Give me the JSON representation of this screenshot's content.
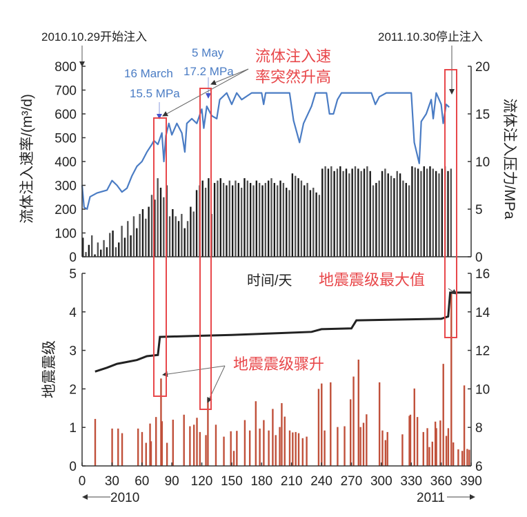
{
  "chart_data": [
    {
      "panel": "top",
      "type": "bar+line",
      "xlabel": "时间/天",
      "xlim": [
        0,
        390
      ],
      "xticks": [
        0,
        30,
        60,
        90,
        120,
        150,
        180,
        210,
        240,
        270,
        300,
        330,
        360,
        390
      ],
      "ylabel_left": "流体注入速率/(m³/d)",
      "ylim_left": [
        0,
        800
      ],
      "yticks_left": [
        0,
        100,
        200,
        300,
        400,
        500,
        600,
        700,
        800
      ],
      "ylabel_right": "流体注入压力/MPa",
      "ylim_right": [
        0,
        20
      ],
      "yticks_right": [
        0,
        5,
        10,
        15,
        20
      ],
      "injection_rate": {
        "name": "流体注入速率",
        "color": "#1a1a1a",
        "x_step_days": 3,
        "values": [
          80,
          20,
          50,
          90,
          10,
          60,
          30,
          70,
          40,
          100,
          110,
          40,
          60,
          130,
          80,
          150,
          90,
          170,
          120,
          180,
          200,
          160,
          210,
          260,
          240,
          330,
          290,
          250,
          300,
          170,
          200,
          170,
          150,
          180,
          120,
          150,
          210,
          190,
          280,
          300,
          320,
          290,
          330,
          180,
          310,
          320,
          330,
          310,
          300,
          320,
          300,
          320,
          310,
          290,
          330,
          320,
          310,
          300,
          320,
          310,
          300,
          310,
          320,
          330,
          310,
          300,
          320,
          310,
          290,
          280,
          350,
          340,
          330,
          320,
          300,
          310,
          280,
          290,
          270,
          260,
          370,
          380,
          370,
          380,
          360,
          370,
          380,
          360,
          370,
          350,
          370,
          380,
          370,
          360,
          370,
          380,
          360,
          300,
          310,
          320,
          360,
          370,
          350,
          340,
          330,
          360,
          350,
          320,
          310,
          300,
          380,
          375,
          370,
          360,
          380,
          370,
          380,
          370,
          360,
          350,
          370,
          380,
          360,
          370
        ]
      },
      "pressure": {
        "name": "流体注入压力",
        "color": "#4a7cc4",
        "points": [
          [
            0,
            7.5
          ],
          [
            2,
            5.2
          ],
          [
            5,
            5
          ],
          [
            8,
            6.3
          ],
          [
            15,
            6.7
          ],
          [
            25,
            7
          ],
          [
            30,
            8
          ],
          [
            35,
            7.5
          ],
          [
            40,
            6.8
          ],
          [
            45,
            7.2
          ],
          [
            50,
            8.5
          ],
          [
            55,
            9.5
          ],
          [
            60,
            10
          ],
          [
            65,
            11
          ],
          [
            70,
            11.8
          ],
          [
            72,
            12.2
          ],
          [
            76,
            11.8
          ],
          [
            80,
            13
          ],
          [
            82,
            10
          ],
          [
            84,
            12.7
          ],
          [
            87,
            14
          ],
          [
            90,
            12.8
          ],
          [
            95,
            14
          ],
          [
            100,
            13
          ],
          [
            103,
            11
          ],
          [
            105,
            14
          ],
          [
            110,
            14.5
          ],
          [
            115,
            14
          ],
          [
            120,
            15.5
          ],
          [
            122,
            13.5
          ],
          [
            125,
            15.8
          ],
          [
            130,
            14.8
          ],
          [
            135,
            14.5
          ],
          [
            138,
            16.5
          ],
          [
            145,
            17.2
          ],
          [
            150,
            16
          ],
          [
            155,
            17.2
          ],
          [
            160,
            16.5
          ],
          [
            170,
            17.2
          ],
          [
            180,
            17.2
          ],
          [
            182,
            16
          ],
          [
            184,
            17.2
          ],
          [
            208,
            17.2
          ],
          [
            212,
            14.3
          ],
          [
            218,
            12
          ],
          [
            222,
            14
          ],
          [
            230,
            15.8
          ],
          [
            234,
            17.2
          ],
          [
            245,
            17.2
          ],
          [
            248,
            15
          ],
          [
            252,
            15
          ],
          [
            256,
            16.5
          ],
          [
            260,
            17.2
          ],
          [
            290,
            17.2
          ],
          [
            294,
            16
          ],
          [
            298,
            16.8
          ],
          [
            305,
            17.2
          ],
          [
            330,
            17.2
          ],
          [
            333,
            12
          ],
          [
            338,
            9.8
          ],
          [
            340,
            14.2
          ],
          [
            345,
            15
          ],
          [
            350,
            16.5
          ],
          [
            352,
            14.5
          ],
          [
            355,
            17.2
          ],
          [
            360,
            16
          ],
          [
            362,
            14
          ],
          [
            365,
            16
          ],
          [
            368,
            15.7
          ]
        ]
      },
      "annotations": {
        "start": "2010.10.29开始注入",
        "stop": "2011.10.30停止注入",
        "may_date": "5 May",
        "may_pressure": "17.2 MPa",
        "march_date": "16 March",
        "march_pressure": "15.5 MPa",
        "rate_jump": [
          "流体注入速",
          "率突然升高"
        ]
      }
    },
    {
      "panel": "bottom",
      "type": "bar+line",
      "xlabel": "时间/天",
      "xlim": [
        0,
        390
      ],
      "ylabel_left": "地震震级",
      "ylim_left": [
        0,
        5
      ],
      "yticks_left": [
        0,
        1,
        2,
        3,
        4,
        5
      ],
      "ylim_right": [
        6,
        16
      ],
      "yticks_right": [
        6,
        8,
        10,
        12,
        14,
        16
      ],
      "magnitudes": {
        "name": "地震震级",
        "color": "#c0503a",
        "points": [
          [
            13,
            1.22
          ],
          [
            30,
            0.97
          ],
          [
            36,
            0.97
          ],
          [
            40,
            0.85
          ],
          [
            56,
            0.97
          ],
          [
            60,
            0.88
          ],
          [
            64,
            0.6
          ],
          [
            68,
            1.1
          ],
          [
            69,
            0.64
          ],
          [
            74,
            1.27
          ],
          [
            79,
            2.27
          ],
          [
            80,
            1.16
          ],
          [
            85,
            0.6
          ],
          [
            91,
            1.2
          ],
          [
            102,
            1.33
          ],
          [
            108,
            1.03
          ],
          [
            112,
            1.07
          ],
          [
            115,
            1.25
          ],
          [
            118,
            0.88
          ],
          [
            124,
            0.8
          ],
          [
            126,
            1.75
          ],
          [
            134,
            1.07
          ],
          [
            142,
            0.76
          ],
          [
            149,
            0.9
          ],
          [
            152,
            0.39
          ],
          [
            155,
            0.91
          ],
          [
            163,
            1.19
          ],
          [
            168,
            0.92
          ],
          [
            174,
            1.68
          ],
          [
            178,
            0.97
          ],
          [
            182,
            1.19
          ],
          [
            187,
            0.92
          ],
          [
            191,
            1.48
          ],
          [
            194,
            0.8
          ],
          [
            198,
            1.01
          ],
          [
            200,
            1.63
          ],
          [
            203,
            1.28
          ],
          [
            208,
            0.92
          ],
          [
            211,
            0.87
          ],
          [
            214,
            0.88
          ],
          [
            217,
            0.85
          ],
          [
            221,
            0.72
          ],
          [
            225,
            0.76
          ],
          [
            237,
            2.0
          ],
          [
            240,
            2.14
          ],
          [
            243,
            0.92
          ],
          [
            249,
            2.17
          ],
          [
            256,
            1.01
          ],
          [
            263,
            1.03
          ],
          [
            269,
            1.73
          ],
          [
            272,
            2.32
          ],
          [
            277,
            2.76
          ],
          [
            279,
            1.01
          ],
          [
            282,
            1.12
          ],
          [
            285,
            1.34
          ],
          [
            298,
            2.17
          ],
          [
            301,
            0.92
          ],
          [
            304,
            0.67
          ],
          [
            306,
            0.88
          ],
          [
            321,
            0.82
          ],
          [
            328,
            1.3
          ],
          [
            329,
            1.33
          ],
          [
            333,
            2.01
          ],
          [
            336,
            1.27
          ],
          [
            342,
            0.88
          ],
          [
            346,
            0.98
          ],
          [
            348,
            0.49
          ],
          [
            351,
            0.63
          ],
          [
            354,
            1.15
          ],
          [
            355,
            0.98
          ],
          [
            359,
            1.18
          ],
          [
            362,
            2.65
          ],
          [
            365,
            0.78
          ],
          [
            367,
            0.98
          ],
          [
            370,
            4.5
          ],
          [
            372,
            0.61
          ],
          [
            377,
            0.43
          ],
          [
            381,
            0.39
          ],
          [
            383,
            2.09
          ],
          [
            386,
            0.44
          ],
          [
            388,
            0.42
          ]
        ]
      },
      "max_magnitude": {
        "name": "地震震级最大值",
        "color": "#222222",
        "points": [
          [
            13,
            2.45
          ],
          [
            25,
            2.55
          ],
          [
            35,
            2.65
          ],
          [
            45,
            2.7
          ],
          [
            55,
            2.75
          ],
          [
            65,
            2.85
          ],
          [
            76,
            2.88
          ],
          [
            78,
            3.35
          ],
          [
            120,
            3.38
          ],
          [
            150,
            3.4
          ],
          [
            200,
            3.45
          ],
          [
            230,
            3.48
          ],
          [
            240,
            3.55
          ],
          [
            270,
            3.57
          ],
          [
            275,
            3.78
          ],
          [
            360,
            3.82
          ],
          [
            367,
            3.88
          ],
          [
            369,
            4.5
          ],
          [
            390,
            4.5
          ]
        ]
      },
      "annotations": {
        "max_label": "地震震级最大值",
        "jump_label": "地震震级骤升",
        "year_start": "2010",
        "year_end": "2011"
      }
    }
  ],
  "highlight_color": "#e8474a"
}
